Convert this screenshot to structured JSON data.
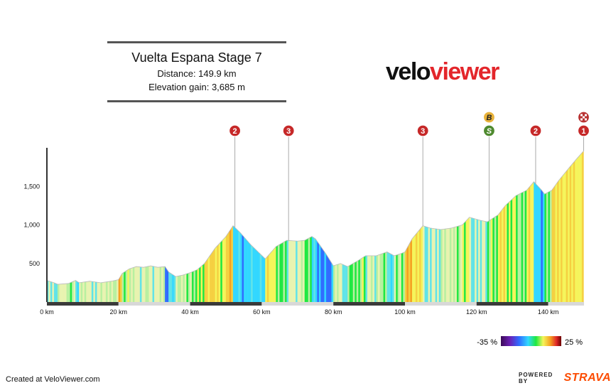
{
  "header": {
    "title": "Vuelta Espana Stage 7",
    "distance": "Distance: 149.9 km",
    "elevation_gain": "Elevation gain: 3,685 m"
  },
  "logo": {
    "part1": "velo",
    "part2": "viewer"
  },
  "footer": {
    "created": "Created at VeloViewer.com",
    "powered": "POWERED BY",
    "brand": "STRAVA"
  },
  "legend": {
    "min_label": "-35 %",
    "max_label": "25 %"
  },
  "colors": {
    "brand_red": "#e3262b",
    "strava_orange": "#fc4c02",
    "marker_red": "#c62828",
    "marker_sprint": "#4f8a2f",
    "marker_bonus": "#e8b23a"
  },
  "chart_data": {
    "type": "area",
    "title": "Vuelta Espana Stage 7",
    "xlabel": "",
    "ylabel": "",
    "x_unit": "km",
    "xlim": [
      0,
      150
    ],
    "ylim": [
      0,
      2000
    ],
    "x_ticks": [
      0,
      20,
      40,
      60,
      80,
      100,
      120,
      140
    ],
    "x_tick_labels": [
      "0 km",
      "20 km",
      "40 km",
      "60 km",
      "80 km",
      "100 km",
      "120 km",
      "140 km"
    ],
    "y_ticks": [
      500,
      1000,
      1500
    ],
    "y_tick_labels": [
      "500",
      "1,000",
      "1,500"
    ],
    "color_scale_range_percent": [
      -35,
      25
    ],
    "profile": [
      {
        "km": 0,
        "elev": 280
      },
      {
        "km": 2,
        "elev": 250
      },
      {
        "km": 3,
        "elev": 230
      },
      {
        "km": 6,
        "elev": 240
      },
      {
        "km": 8,
        "elev": 280
      },
      {
        "km": 9,
        "elev": 250
      },
      {
        "km": 12,
        "elev": 270
      },
      {
        "km": 15,
        "elev": 250
      },
      {
        "km": 18,
        "elev": 270
      },
      {
        "km": 20,
        "elev": 290
      },
      {
        "km": 21,
        "elev": 370
      },
      {
        "km": 23,
        "elev": 430
      },
      {
        "km": 25,
        "elev": 460
      },
      {
        "km": 27,
        "elev": 450
      },
      {
        "km": 29,
        "elev": 470
      },
      {
        "km": 31,
        "elev": 450
      },
      {
        "km": 33,
        "elev": 460
      },
      {
        "km": 34,
        "elev": 390
      },
      {
        "km": 36,
        "elev": 330
      },
      {
        "km": 38,
        "elev": 350
      },
      {
        "km": 40,
        "elev": 380
      },
      {
        "km": 42,
        "elev": 420
      },
      {
        "km": 44,
        "elev": 500
      },
      {
        "km": 47,
        "elev": 700
      },
      {
        "km": 50,
        "elev": 850
      },
      {
        "km": 52,
        "elev": 990
      },
      {
        "km": 54,
        "elev": 900
      },
      {
        "km": 57,
        "elev": 740
      },
      {
        "km": 61,
        "elev": 560
      },
      {
        "km": 64,
        "elev": 720
      },
      {
        "km": 67,
        "elev": 800
      },
      {
        "km": 70,
        "elev": 790
      },
      {
        "km": 72,
        "elev": 800
      },
      {
        "km": 74,
        "elev": 850
      },
      {
        "km": 75,
        "elev": 820
      },
      {
        "km": 78,
        "elev": 620
      },
      {
        "km": 80,
        "elev": 470
      },
      {
        "km": 82,
        "elev": 500
      },
      {
        "km": 84,
        "elev": 460
      },
      {
        "km": 87,
        "elev": 540
      },
      {
        "km": 89,
        "elev": 600
      },
      {
        "km": 92,
        "elev": 600
      },
      {
        "km": 95,
        "elev": 650
      },
      {
        "km": 97,
        "elev": 600
      },
      {
        "km": 99,
        "elev": 630
      },
      {
        "km": 100,
        "elev": 650
      },
      {
        "km": 102,
        "elev": 820
      },
      {
        "km": 105,
        "elev": 990
      },
      {
        "km": 107,
        "elev": 960
      },
      {
        "km": 110,
        "elev": 940
      },
      {
        "km": 113,
        "elev": 960
      },
      {
        "km": 116,
        "elev": 1000
      },
      {
        "km": 118,
        "elev": 1100
      },
      {
        "km": 121,
        "elev": 1060
      },
      {
        "km": 123,
        "elev": 1040
      },
      {
        "km": 126,
        "elev": 1130
      },
      {
        "km": 128,
        "elev": 1250
      },
      {
        "km": 131,
        "elev": 1380
      },
      {
        "km": 134,
        "elev": 1450
      },
      {
        "km": 136,
        "elev": 1560
      },
      {
        "km": 138,
        "elev": 1460
      },
      {
        "km": 139,
        "elev": 1400
      },
      {
        "km": 141,
        "elev": 1450
      },
      {
        "km": 143,
        "elev": 1580
      },
      {
        "km": 146,
        "elev": 1750
      },
      {
        "km": 148,
        "elev": 1860
      },
      {
        "km": 149.9,
        "elev": 1960
      }
    ],
    "climb_markers": [
      {
        "km": 52.5,
        "label": "2",
        "type": "climb"
      },
      {
        "km": 67.5,
        "label": "3",
        "type": "climb"
      },
      {
        "km": 105,
        "label": "3",
        "type": "climb"
      },
      {
        "km": 123.5,
        "label": "S",
        "type": "sprint"
      },
      {
        "km": 123.5,
        "label": "B",
        "type": "bonus"
      },
      {
        "km": 136.5,
        "label": "2",
        "type": "climb"
      },
      {
        "km": 149.9,
        "label": "1",
        "type": "climb"
      },
      {
        "km": 149.9,
        "label": "",
        "type": "finish"
      }
    ]
  }
}
